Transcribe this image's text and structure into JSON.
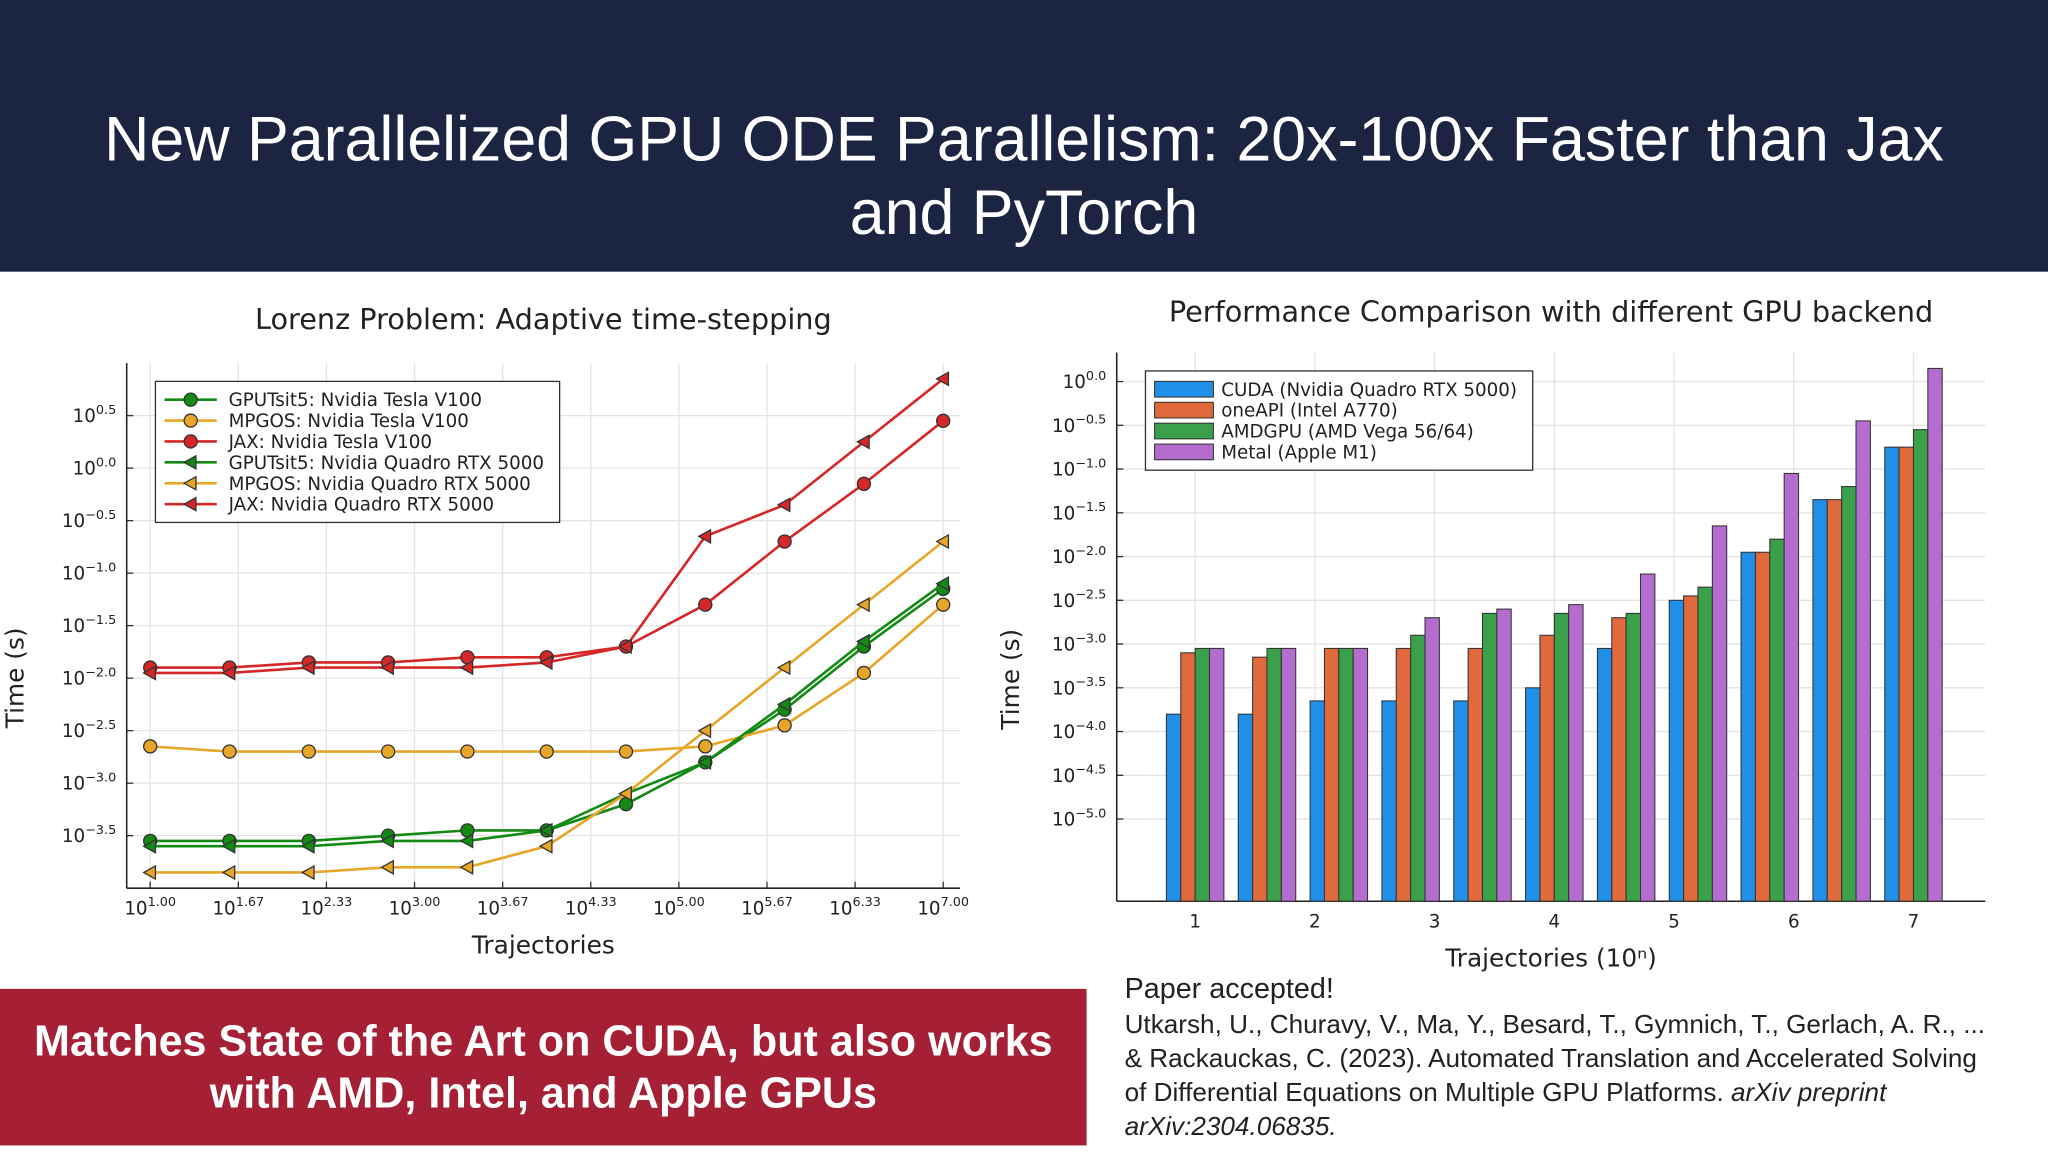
{
  "title": "New Parallelized GPU ODE Parallelism: 20x-100x Faster than Jax and PyTorch",
  "banner": "Matches State of the Art on CUDA, but also works with AMD, Intel, and Apple GPUs",
  "citation": {
    "heading": "Paper accepted!",
    "text": "Utkarsh, U., Churavy, V., Ma, Y., Besard, T., Gymnich, T., Gerlach, A. R., ... & Rackauckas, C. (2023). Automated Translation and Accelerated Solving of Differential Equations on Multiple GPU Platforms.",
    "venue": "arXiv preprint arXiv:2304.06835."
  },
  "chart_data": [
    {
      "type": "line",
      "title": "Lorenz Problem: Adaptive time-stepping",
      "x_label": "Trajectories",
      "y_label": "Time (s)",
      "xscale": "log",
      "yscale": "log",
      "grid": true,
      "legend": "top-left",
      "x": [
        10,
        39.81,
        158.5,
        631,
        2512,
        10000,
        39811,
        158489,
        630957,
        2511886,
        10000000
      ],
      "xlim": [
        6.64,
        13400000
      ],
      "xticks": [
        {
          "value": 10,
          "label": "10^1.00"
        },
        {
          "value": 46.42,
          "label": "10^1.67"
        },
        {
          "value": 215.4,
          "label": "10^2.33"
        },
        {
          "value": 1000,
          "label": "10^3.00"
        },
        {
          "value": 4642,
          "label": "10^3.67"
        },
        {
          "value": 21544,
          "label": "10^4.33"
        },
        {
          "value": 100000,
          "label": "10^5.00"
        },
        {
          "value": 464159,
          "label": "10^5.67"
        },
        {
          "value": 2154435,
          "label": "10^6.33"
        },
        {
          "value": 10000000,
          "label": "10^7.00"
        }
      ],
      "ylim": [
        0.0001,
        10
      ],
      "yticks": [
        {
          "value": 3.1623,
          "label": "10^0.5"
        },
        {
          "value": 1,
          "label": "10^0.0"
        },
        {
          "value": 0.31623,
          "label": "10^−0.5"
        },
        {
          "value": 0.1,
          "label": "10^−1.0"
        },
        {
          "value": 0.031623,
          "label": "10^−1.5"
        },
        {
          "value": 0.01,
          "label": "10^−2.0"
        },
        {
          "value": 0.0031623,
          "label": "10^−2.5"
        },
        {
          "value": 0.001,
          "label": "10^−3.0"
        },
        {
          "value": 0.00031623,
          "label": "10^−3.5"
        }
      ],
      "series": [
        {
          "name": "GPUTsit5: Nvidia Tesla V100",
          "color": "#138a13",
          "marker": "circle",
          "values": [
            0.000282,
            0.000282,
            0.000282,
            0.000316,
            0.000355,
            0.000355,
            0.000631,
            0.00158,
            0.00501,
            0.02,
            0.0708
          ]
        },
        {
          "name": "MPGOS: Nvidia Tesla V100",
          "color": "#e8a628",
          "marker": "circle",
          "values": [
            0.00224,
            0.002,
            0.002,
            0.002,
            0.002,
            0.002,
            0.002,
            0.00224,
            0.00355,
            0.0112,
            0.0501
          ]
        },
        {
          "name": "JAX: Nvidia Tesla V100",
          "color": "#d62728",
          "marker": "circle",
          "values": [
            0.0126,
            0.0126,
            0.0141,
            0.0141,
            0.0158,
            0.0158,
            0.02,
            0.0501,
            0.2,
            0.708,
            2.82
          ]
        },
        {
          "name": "GPUTsit5: Nvidia Quadro RTX 5000",
          "color": "#138a13",
          "marker": "triangle",
          "values": [
            0.000251,
            0.000251,
            0.000251,
            0.000282,
            0.000282,
            0.000355,
            0.000794,
            0.00158,
            0.00562,
            0.0224,
            0.0794
          ]
        },
        {
          "name": "MPGOS: Nvidia Quadro RTX 5000",
          "color": "#e8a628",
          "marker": "triangle",
          "values": [
            0.000141,
            0.000141,
            0.000141,
            0.000158,
            0.000158,
            0.000251,
            0.000794,
            0.00316,
            0.0126,
            0.0501,
            0.2
          ]
        },
        {
          "name": "JAX: Nvidia Quadro RTX 5000",
          "color": "#d62728",
          "marker": "triangle",
          "values": [
            0.0112,
            0.0112,
            0.0126,
            0.0126,
            0.0126,
            0.0141,
            0.02,
            0.224,
            0.447,
            1.778,
            7.08
          ]
        }
      ]
    },
    {
      "type": "bar",
      "title": "Performance Comparison with different GPU backend",
      "x_label": "Trajectories (10ⁿ)",
      "y_label": "Time (s)",
      "xscale": "linear",
      "yscale": "log",
      "grid": true,
      "legend": "top-left",
      "x": [
        1,
        1.6,
        2.2,
        2.8,
        3.4,
        4,
        4.6,
        5.2,
        5.8,
        6.4,
        7
      ],
      "xlim": [
        0.345,
        7.6
      ],
      "xticks": [
        1,
        2,
        3,
        4,
        5,
        6,
        7
      ],
      "ylim": [
        1.15e-06,
        2.14
      ],
      "yticks": [
        {
          "value": 1,
          "label": "10^0.0"
        },
        {
          "value": 0.31623,
          "label": "10^−0.5"
        },
        {
          "value": 0.1,
          "label": "10^−1.0"
        },
        {
          "value": 0.031623,
          "label": "10^−1.5"
        },
        {
          "value": 0.01,
          "label": "10^−2.0"
        },
        {
          "value": 0.0031623,
          "label": "10^−2.5"
        },
        {
          "value": 0.001,
          "label": "10^−3.0"
        },
        {
          "value": 0.00031623,
          "label": "10^−3.5"
        },
        {
          "value": 0.0001,
          "label": "10^−4.0"
        },
        {
          "value": 3.1623e-05,
          "label": "10^−4.5"
        },
        {
          "value": 1e-05,
          "label": "10^−5.0"
        }
      ],
      "series": [
        {
          "name": "CUDA (Nvidia Quadro RTX 5000)",
          "color": "#1f8fe8",
          "values": [
            0.000158,
            0.000158,
            0.000224,
            0.000224,
            0.000224,
            0.000316,
            0.000891,
            0.00316,
            0.0112,
            0.0447,
            0.178
          ]
        },
        {
          "name": "oneAPI (Intel A770)",
          "color": "#e06a3b",
          "values": [
            0.000794,
            0.000708,
            0.000891,
            0.000891,
            0.000891,
            0.00126,
            0.002,
            0.00355,
            0.0112,
            0.0447,
            0.178
          ]
        },
        {
          "name": "AMDGPU (AMD Vega 56/64)",
          "color": "#3aa04a",
          "values": [
            0.000891,
            0.000891,
            0.000891,
            0.00126,
            0.00224,
            0.00224,
            0.00224,
            0.00447,
            0.0158,
            0.0631,
            0.282
          ]
        },
        {
          "name": "Metal (Apple M1)",
          "color": "#b56ccf",
          "values": [
            0.000891,
            0.000891,
            0.000891,
            0.002,
            0.00251,
            0.00282,
            0.00631,
            0.0224,
            0.0891,
            0.355,
            1.413
          ]
        }
      ]
    }
  ]
}
